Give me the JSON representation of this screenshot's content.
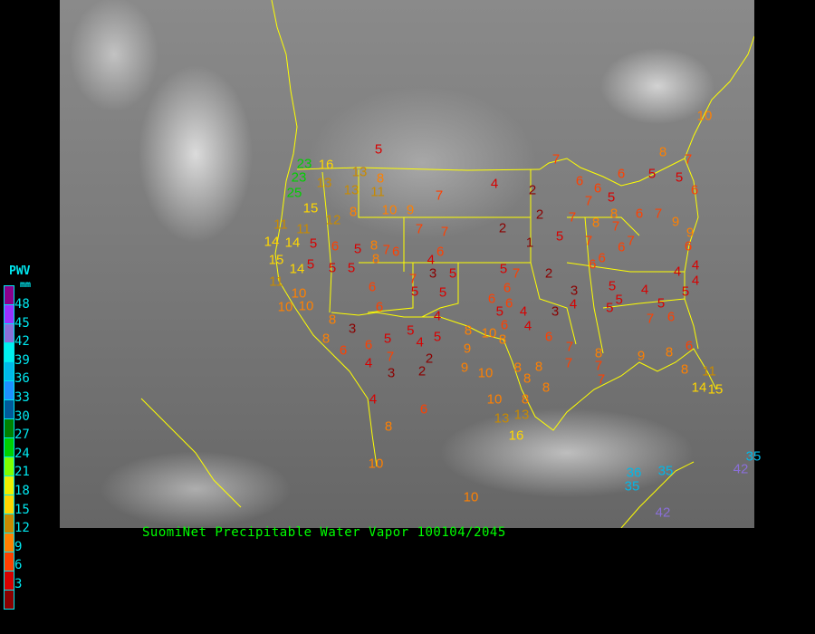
{
  "caption": "SuomiNet Precipitable Water Vapor 100104/2045",
  "legend": {
    "title": "PWV",
    "unit": "mm",
    "colors": [
      "#8b008b",
      "#9932ff",
      "#8a6fd8",
      "#00f0f0",
      "#00b8e8",
      "#1e90ff",
      "#005a9a",
      "#008000",
      "#00d000",
      "#80ff00",
      "#f0f000",
      "#ffd700",
      "#c88a00",
      "#ff8000",
      "#ff4000",
      "#d80000",
      "#8b0000"
    ],
    "labels": [
      "48",
      "45",
      "42",
      "39",
      "36",
      "33",
      "30",
      "27",
      "24",
      "21",
      "18",
      "15",
      "12",
      "9",
      "6",
      "3"
    ]
  },
  "boundary_color": "#ffff00",
  "stations": [
    "5",
    "23",
    "16",
    "13",
    "8",
    "23",
    "25",
    "13",
    "13",
    "11",
    "7",
    "4",
    "2",
    "7",
    "6",
    "6",
    "6",
    "5",
    "5",
    "8",
    "7",
    "6",
    "10",
    "15",
    "12",
    "8",
    "10",
    "9",
    "11",
    "11",
    "14",
    "14",
    "5",
    "6",
    "5",
    "8",
    "7",
    "7",
    "7",
    "2",
    "2",
    "7",
    "7",
    "5",
    "8",
    "8",
    "7",
    "6",
    "7",
    "9",
    "9",
    "6",
    "5",
    "1",
    "7",
    "6",
    "7",
    "15",
    "14",
    "5",
    "5",
    "5",
    "8",
    "6",
    "4",
    "3",
    "5",
    "6",
    "5",
    "7",
    "2",
    "6",
    "6",
    "4",
    "4",
    "4",
    "11",
    "10",
    "10",
    "10",
    "6",
    "6",
    "7",
    "5",
    "5",
    "6",
    "6",
    "6",
    "4",
    "5",
    "3",
    "3",
    "4",
    "5",
    "5",
    "5",
    "4",
    "5",
    "5",
    "7",
    "6",
    "8",
    "3",
    "8",
    "6",
    "6",
    "5",
    "5",
    "4",
    "5",
    "4",
    "8",
    "10",
    "8",
    "9",
    "6",
    "4",
    "6",
    "7",
    "7",
    "8",
    "7",
    "9",
    "8",
    "6",
    "4",
    "7",
    "3",
    "2",
    "2",
    "9",
    "10",
    "8",
    "8",
    "8",
    "8",
    "7",
    "8",
    "11",
    "14",
    "15",
    "4",
    "6",
    "8",
    "10",
    "8",
    "13",
    "13",
    "16",
    "10",
    "10",
    "35",
    "35",
    "36",
    "42",
    "42",
    "35"
  ]
}
